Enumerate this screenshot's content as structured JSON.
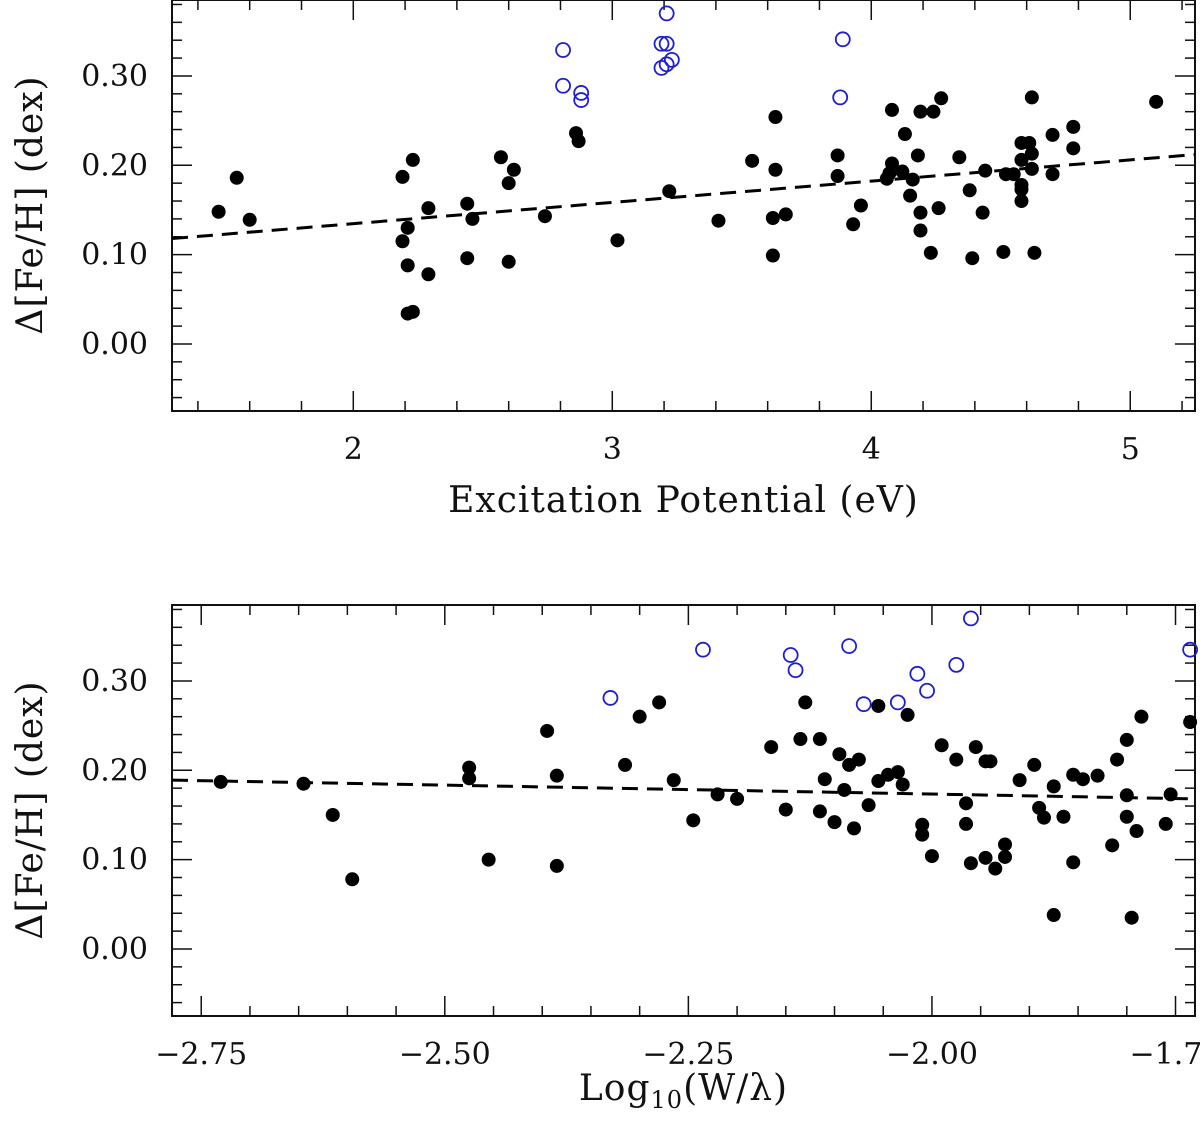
{
  "colors": {
    "axis": "#111111",
    "filled": "#000000",
    "open": "#1f1fd1",
    "fit": "#000000"
  },
  "chart_data": [
    {
      "type": "scatter",
      "title": "",
      "xlabel": "Excitation Potential (eV)",
      "ylabel": "Δ[Fe/H] (dex)",
      "xlim": [
        1.3,
        5.25
      ],
      "ylim": [
        -0.075,
        0.385
      ],
      "xticks": [
        2,
        3,
        4,
        5
      ],
      "xtick_labels": [
        "2",
        "3",
        "4",
        "5"
      ],
      "yticks": [
        0.0,
        0.1,
        0.2,
        0.3
      ],
      "ytick_labels": [
        "0.00",
        "0.10",
        "0.20",
        "0.30"
      ],
      "grid": false,
      "series": [
        {
          "marker": "filled-circle",
          "points": [
            [
              1.48,
              0.148
            ],
            [
              1.55,
              0.186
            ],
            [
              1.6,
              0.139
            ],
            [
              2.19,
              0.187
            ],
            [
              2.19,
              0.115
            ],
            [
              2.21,
              0.088
            ],
            [
              2.21,
              0.13
            ],
            [
              2.23,
              0.206
            ],
            [
              2.21,
              0.034
            ],
            [
              2.23,
              0.036
            ],
            [
              2.29,
              0.152
            ],
            [
              2.29,
              0.078
            ],
            [
              2.44,
              0.157
            ],
            [
              2.44,
              0.096
            ],
            [
              2.46,
              0.14
            ],
            [
              2.57,
              0.209
            ],
            [
              2.6,
              0.18
            ],
            [
              2.6,
              0.092
            ],
            [
              2.62,
              0.195
            ],
            [
              2.74,
              0.143
            ],
            [
              2.86,
              0.236
            ],
            [
              2.87,
              0.227
            ],
            [
              3.02,
              0.116
            ],
            [
              3.22,
              0.171
            ],
            [
              3.41,
              0.138
            ],
            [
              3.54,
              0.205
            ],
            [
              3.62,
              0.141
            ],
            [
              3.62,
              0.099
            ],
            [
              3.63,
              0.254
            ],
            [
              3.63,
              0.195
            ],
            [
              3.67,
              0.145
            ],
            [
              3.87,
              0.211
            ],
            [
              3.87,
              0.188
            ],
            [
              3.93,
              0.134
            ],
            [
              3.96,
              0.155
            ],
            [
              4.06,
              0.185
            ],
            [
              4.07,
              0.191
            ],
            [
              4.08,
              0.262
            ],
            [
              4.08,
              0.202
            ],
            [
              4.12,
              0.193
            ],
            [
              4.13,
              0.235
            ],
            [
              4.15,
              0.166
            ],
            [
              4.16,
              0.184
            ],
            [
              4.18,
              0.211
            ],
            [
              4.19,
              0.147
            ],
            [
              4.19,
              0.127
            ],
            [
              4.19,
              0.26
            ],
            [
              4.23,
              0.102
            ],
            [
              4.24,
              0.26
            ],
            [
              4.26,
              0.152
            ],
            [
              4.27,
              0.275
            ],
            [
              4.34,
              0.209
            ],
            [
              4.38,
              0.172
            ],
            [
              4.39,
              0.096
            ],
            [
              4.43,
              0.147
            ],
            [
              4.44,
              0.194
            ],
            [
              4.51,
              0.103
            ],
            [
              4.52,
              0.19
            ],
            [
              4.55,
              0.19
            ],
            [
              4.58,
              0.225
            ],
            [
              4.58,
              0.206
            ],
            [
              4.58,
              0.178
            ],
            [
              4.58,
              0.173
            ],
            [
              4.58,
              0.16
            ],
            [
              4.61,
              0.225
            ],
            [
              4.62,
              0.213
            ],
            [
              4.62,
              0.196
            ],
            [
              4.62,
              0.276
            ],
            [
              4.63,
              0.102
            ],
            [
              4.7,
              0.234
            ],
            [
              4.7,
              0.19
            ],
            [
              4.78,
              0.243
            ],
            [
              4.78,
              0.219
            ],
            [
              5.1,
              0.271
            ]
          ]
        },
        {
          "marker": "open-circle",
          "points": [
            [
              2.81,
              0.329
            ],
            [
              2.81,
              0.289
            ],
            [
              2.88,
              0.281
            ],
            [
              2.88,
              0.273
            ],
            [
              3.19,
              0.336
            ],
            [
              3.21,
              0.336
            ],
            [
              3.21,
              0.37
            ],
            [
              3.19,
              0.309
            ],
            [
              3.21,
              0.313
            ],
            [
              3.23,
              0.318
            ],
            [
              3.88,
              0.276
            ],
            [
              3.89,
              0.341
            ]
          ]
        },
        {
          "style": "dashed-line",
          "x": [
            1.3,
            5.25
          ],
          "y": [
            0.118,
            0.212
          ]
        }
      ]
    },
    {
      "type": "scatter",
      "title": "",
      "xlabel": "Log10(W/λ)",
      "ylabel": "Δ[Fe/H] (dex)",
      "xlim": [
        -2.78,
        -1.73
      ],
      "ylim": [
        -0.075,
        0.385
      ],
      "xticks": [
        -2.75,
        -2.5,
        -2.25,
        -2.0,
        -1.75
      ],
      "xtick_labels": [
        "−2.75",
        "−2.50",
        "−2.25",
        "−2.00",
        "−1.75"
      ],
      "yticks": [
        0.0,
        0.1,
        0.2,
        0.3
      ],
      "ytick_labels": [
        "0.00",
        "0.10",
        "0.20",
        "0.30"
      ],
      "grid": false,
      "series": [
        {
          "marker": "filled-circle",
          "points": [
            [
              -2.73,
              0.187
            ],
            [
              -2.645,
              0.185
            ],
            [
              -2.615,
              0.15
            ],
            [
              -2.595,
              0.078
            ],
            [
              -2.475,
              0.203
            ],
            [
              -2.475,
              0.191
            ],
            [
              -2.455,
              0.1
            ],
            [
              -2.395,
              0.244
            ],
            [
              -2.385,
              0.194
            ],
            [
              -2.385,
              0.093
            ],
            [
              -2.315,
              0.206
            ],
            [
              -2.3,
              0.26
            ],
            [
              -2.28,
              0.276
            ],
            [
              -2.265,
              0.189
            ],
            [
              -2.245,
              0.144
            ],
            [
              -2.22,
              0.173
            ],
            [
              -2.2,
              0.168
            ],
            [
              -2.165,
              0.226
            ],
            [
              -2.15,
              0.156
            ],
            [
              -2.135,
              0.235
            ],
            [
              -2.13,
              0.276
            ],
            [
              -2.115,
              0.235
            ],
            [
              -2.115,
              0.154
            ],
            [
              -2.11,
              0.19
            ],
            [
              -2.1,
              0.142
            ],
            [
              -2.095,
              0.218
            ],
            [
              -2.09,
              0.178
            ],
            [
              -2.085,
              0.206
            ],
            [
              -2.08,
              0.135
            ],
            [
              -2.075,
              0.212
            ],
            [
              -2.065,
              0.161
            ],
            [
              -2.055,
              0.272
            ],
            [
              -2.055,
              0.188
            ],
            [
              -2.045,
              0.195
            ],
            [
              -2.035,
              0.198
            ],
            [
              -2.03,
              0.184
            ],
            [
              -2.025,
              0.262
            ],
            [
              -2.01,
              0.128
            ],
            [
              -2.01,
              0.139
            ],
            [
              -2.0,
              0.104
            ],
            [
              -1.99,
              0.228
            ],
            [
              -1.975,
              0.212
            ],
            [
              -1.965,
              0.14
            ],
            [
              -1.965,
              0.163
            ],
            [
              -1.96,
              0.096
            ],
            [
              -1.955,
              0.226
            ],
            [
              -1.945,
              0.21
            ],
            [
              -1.945,
              0.102
            ],
            [
              -1.94,
              0.21
            ],
            [
              -1.935,
              0.09
            ],
            [
              -1.925,
              0.117
            ],
            [
              -1.925,
              0.103
            ],
            [
              -1.91,
              0.189
            ],
            [
              -1.895,
              0.206
            ],
            [
              -1.89,
              0.158
            ],
            [
              -1.885,
              0.147
            ],
            [
              -1.875,
              0.182
            ],
            [
              -1.875,
              0.038
            ],
            [
              -1.865,
              0.148
            ],
            [
              -1.855,
              0.097
            ],
            [
              -1.855,
              0.195
            ],
            [
              -1.845,
              0.19
            ],
            [
              -1.83,
              0.194
            ],
            [
              -1.815,
              0.116
            ],
            [
              -1.81,
              0.212
            ],
            [
              -1.8,
              0.148
            ],
            [
              -1.8,
              0.234
            ],
            [
              -1.8,
              0.172
            ],
            [
              -1.795,
              0.035
            ],
            [
              -1.79,
              0.132
            ],
            [
              -1.785,
              0.26
            ],
            [
              -1.76,
              0.14
            ],
            [
              -1.755,
              0.173
            ],
            [
              -1.735,
              0.254
            ]
          ]
        },
        {
          "marker": "open-circle",
          "points": [
            [
              -2.33,
              0.281
            ],
            [
              -2.235,
              0.335
            ],
            [
              -2.145,
              0.329
            ],
            [
              -2.14,
              0.312
            ],
            [
              -2.085,
              0.339
            ],
            [
              -2.07,
              0.274
            ],
            [
              -2.035,
              0.276
            ],
            [
              -2.015,
              0.308
            ],
            [
              -2.005,
              0.289
            ],
            [
              -1.975,
              0.318
            ],
            [
              -1.96,
              0.37
            ],
            [
              -1.735,
              0.335
            ]
          ]
        },
        {
          "style": "dashed-line",
          "x": [
            -2.78,
            -1.73
          ],
          "y": [
            0.189,
            0.168
          ]
        }
      ]
    }
  ]
}
